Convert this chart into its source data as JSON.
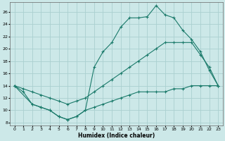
{
  "xlabel": "Humidex (Indice chaleur)",
  "bg_color": "#cce8e8",
  "grid_color": "#aad0d0",
  "line_color": "#1a7a6a",
  "xlim": [
    -0.5,
    23.5
  ],
  "ylim": [
    7.5,
    27.5
  ],
  "xticks": [
    0,
    1,
    2,
    3,
    4,
    5,
    6,
    7,
    8,
    9,
    10,
    11,
    12,
    13,
    14,
    15,
    16,
    17,
    18,
    19,
    20,
    21,
    22,
    23
  ],
  "yticks": [
    8,
    10,
    12,
    14,
    16,
    18,
    20,
    22,
    24,
    26
  ],
  "line1_x": [
    0,
    1,
    2,
    3,
    4,
    5,
    6,
    7,
    8,
    9,
    10,
    11,
    12,
    13,
    14,
    15,
    16,
    17,
    18,
    19,
    20,
    21,
    22,
    23
  ],
  "line1_y": [
    14,
    13,
    11,
    10.5,
    10,
    9,
    8.5,
    9,
    10,
    10.5,
    11,
    11.5,
    12,
    12.5,
    13,
    13,
    13,
    13,
    13.5,
    13.5,
    14,
    14,
    14,
    14
  ],
  "line2_x": [
    0,
    1,
    2,
    3,
    4,
    5,
    6,
    7,
    8,
    9,
    10,
    11,
    12,
    13,
    14,
    15,
    16,
    17,
    18,
    19,
    20,
    21,
    22,
    23
  ],
  "line2_y": [
    14,
    13.5,
    13,
    12.5,
    12,
    11.5,
    11,
    11.5,
    12,
    13,
    14,
    15,
    16,
    17,
    18,
    19,
    20,
    21,
    21,
    21,
    21,
    19,
    17,
    14
  ],
  "line3_x": [
    0,
    2,
    3,
    4,
    5,
    6,
    7,
    8,
    9,
    10,
    11,
    12,
    13,
    14,
    15,
    16,
    17,
    18,
    19,
    20,
    21,
    22,
    23
  ],
  "line3_y": [
    14,
    11,
    10.5,
    10,
    9,
    8.5,
    9,
    10,
    17,
    19.5,
    21,
    23.5,
    25,
    25,
    25.2,
    27,
    25.5,
    25,
    23,
    21.5,
    19.5,
    16.5,
    14
  ]
}
